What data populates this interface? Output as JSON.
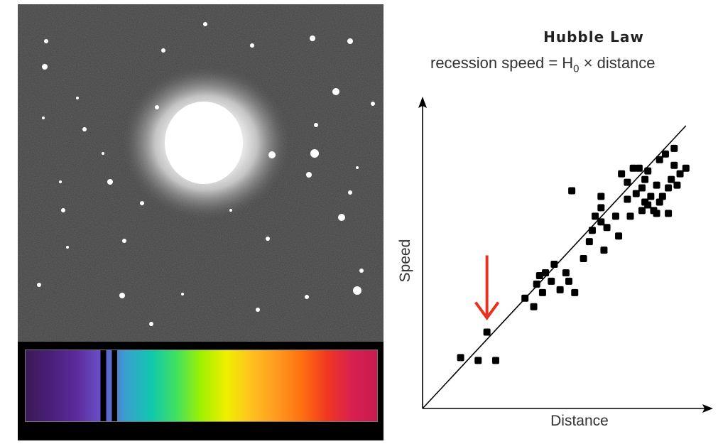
{
  "diagram": {
    "title": "Hubble Law",
    "formula": {
      "prefix": "recession speed = H",
      "subscript": "0",
      "suffix": " × distance"
    },
    "x_axis_label": "Distance",
    "y_axis_label": "Speed"
  },
  "chart_data": {
    "type": "scatter",
    "title": "Hubble Law",
    "xlabel": "Distance",
    "ylabel": "Speed",
    "xlim": [
      0,
      100
    ],
    "ylim": [
      0,
      100
    ],
    "series": [
      {
        "points": [
          [
            13,
            18
          ],
          [
            19,
            17
          ],
          [
            25,
            17
          ],
          [
            22,
            27
          ],
          [
            35,
            39
          ],
          [
            38,
            36
          ],
          [
            39,
            44
          ],
          [
            40,
            47
          ],
          [
            41,
            41
          ],
          [
            42,
            48
          ],
          [
            44,
            45
          ],
          [
            45,
            51
          ],
          [
            47,
            42
          ],
          [
            49,
            48
          ],
          [
            50,
            45
          ],
          [
            52,
            41
          ],
          [
            55,
            53
          ],
          [
            51,
            77
          ],
          [
            57,
            59
          ],
          [
            58,
            63
          ],
          [
            59,
            68
          ],
          [
            61,
            71
          ],
          [
            61,
            66
          ],
          [
            61,
            75
          ],
          [
            62,
            56
          ],
          [
            63,
            64
          ],
          [
            66,
            68
          ],
          [
            67,
            61
          ],
          [
            68,
            83
          ],
          [
            70,
            80
          ],
          [
            70,
            74
          ],
          [
            71,
            68
          ],
          [
            72,
            85
          ],
          [
            73,
            76
          ],
          [
            74,
            85
          ],
          [
            75,
            78
          ],
          [
            75,
            70
          ],
          [
            76,
            73
          ],
          [
            76,
            81
          ],
          [
            77,
            72
          ],
          [
            77,
            84
          ],
          [
            78,
            75
          ],
          [
            79,
            70
          ],
          [
            80,
            69
          ],
          [
            80,
            79
          ],
          [
            81,
            73
          ],
          [
            81,
            88
          ],
          [
            82,
            75
          ],
          [
            83,
            90
          ],
          [
            84,
            78
          ],
          [
            84,
            69
          ],
          [
            85,
            81
          ],
          [
            86,
            92
          ],
          [
            86,
            86
          ],
          [
            87,
            79
          ],
          [
            88,
            83
          ],
          [
            90,
            85
          ]
        ]
      }
    ],
    "fit_line": {
      "x": [
        0,
        90
      ],
      "y": [
        0,
        100
      ]
    },
    "highlight": {
      "point_index": 3,
      "color": "#e8321e",
      "marker": "arrow"
    }
  },
  "spectrum": {
    "colors": [
      "#3a1a55",
      "#4a1f7a",
      "#5a2a9a",
      "#6a4fc8",
      "#3aa0d0",
      "#10c8b0",
      "#40e060",
      "#a0f000",
      "#f0f000",
      "#ffc020",
      "#ff9a20",
      "#ff7010",
      "#f03820",
      "#d82050",
      "#c81a50"
    ],
    "absorption_line_color": "#000000"
  }
}
